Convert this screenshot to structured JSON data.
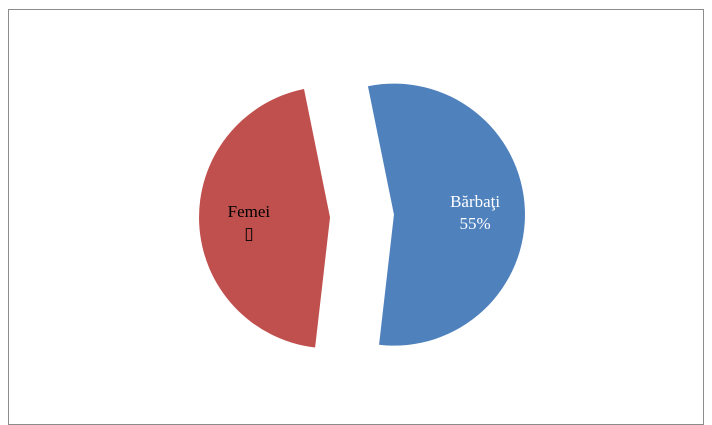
{
  "chart_data": {
    "type": "pie",
    "exploded": true,
    "slices": [
      {
        "label": "Bărbaţi",
        "value_label": "55%",
        "value": 55,
        "color": "#4f81bd",
        "label_color": "#ffffff"
      },
      {
        "label": "Femei",
        "value_label": "▯",
        "value": 45,
        "color": "#c0504d",
        "label_color": "#000000"
      }
    ]
  }
}
